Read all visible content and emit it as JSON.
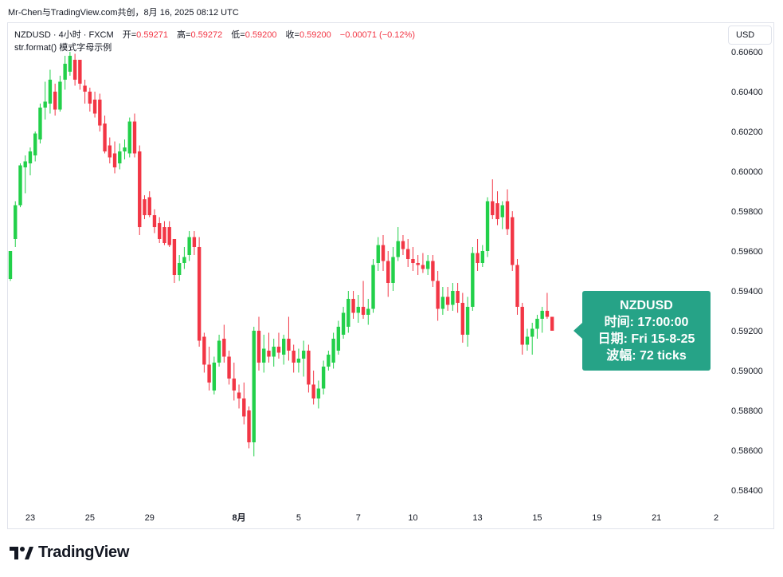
{
  "caption": {
    "text": "Mr-Chen与TradingView.com共创，8月 16, 2025 08:12 UTC"
  },
  "legend": {
    "symbol": "NZDUSD · 4小时 · FXCM",
    "open_label": "开=",
    "open": "0.59271",
    "high_label": "高=",
    "high": "0.59272",
    "low_label": "低=",
    "low": "0.59200",
    "close_label": "收=",
    "close": "0.59200",
    "change": "−0.00071 (−0.12%)"
  },
  "subtitle": "str.format() 模式字母示例",
  "currency_button": "USD",
  "footer": {
    "brand": "TradingView"
  },
  "callout": {
    "line1": "NZDUSD",
    "line2": "时间: 17:00:00",
    "line3": "日期: Fri 15-8-25",
    "line4": "波幅: 72 ticks"
  },
  "colors": {
    "up": "#22d04a",
    "down": "#f23645",
    "callout": "#26a387",
    "text": "#131722"
  },
  "chart_data": {
    "type": "candlestick",
    "symbol": "NZDUSD",
    "interval": "4小时",
    "y_ticks": [
      "0.60600",
      "0.60400",
      "0.60200",
      "0.60000",
      "0.59800",
      "0.59600",
      "0.59400",
      "0.59200",
      "0.59000",
      "0.58800",
      "0.58600",
      "0.58400"
    ],
    "y_range": [
      0.5836,
      0.6068
    ],
    "x_ticks": [
      {
        "label": "23",
        "index": 4
      },
      {
        "label": "25",
        "index": 16
      },
      {
        "label": "29",
        "index": 28
      },
      {
        "label": "8月",
        "index": 46
      },
      {
        "label": "5",
        "index": 58
      },
      {
        "label": "7",
        "index": 70
      },
      {
        "label": "10",
        "index": 81
      },
      {
        "label": "13",
        "index": 94
      },
      {
        "label": "15",
        "index": 106
      },
      {
        "label": "19",
        "index": 118
      },
      {
        "label": "21",
        "index": 130
      },
      {
        "label": "2",
        "index": 142
      }
    ],
    "candles": [
      {
        "o": 0.5946,
        "h": 0.596,
        "l": 0.5945,
        "c": 0.596
      },
      {
        "o": 0.5966,
        "h": 0.5985,
        "l": 0.5962,
        "c": 0.5983
      },
      {
        "o": 0.5983,
        "h": 0.6004,
        "l": 0.5982,
        "c": 0.6003
      },
      {
        "o": 0.6002,
        "h": 0.6008,
        "l": 0.5989,
        "c": 0.6005
      },
      {
        "o": 0.6004,
        "h": 0.6012,
        "l": 0.5998,
        "c": 0.601
      },
      {
        "o": 0.6008,
        "h": 0.602,
        "l": 0.6005,
        "c": 0.6019
      },
      {
        "o": 0.6016,
        "h": 0.6034,
        "l": 0.6014,
        "c": 0.6032
      },
      {
        "o": 0.6032,
        "h": 0.6045,
        "l": 0.6026,
        "c": 0.6035
      },
      {
        "o": 0.6034,
        "h": 0.6051,
        "l": 0.6029,
        "c": 0.6046
      },
      {
        "o": 0.604,
        "h": 0.6044,
        "l": 0.6028,
        "c": 0.6031
      },
      {
        "o": 0.6031,
        "h": 0.6048,
        "l": 0.603,
        "c": 0.6045
      },
      {
        "o": 0.6046,
        "h": 0.6058,
        "l": 0.6041,
        "c": 0.6054
      },
      {
        "o": 0.605,
        "h": 0.606,
        "l": 0.6048,
        "c": 0.6058
      },
      {
        "o": 0.6056,
        "h": 0.6059,
        "l": 0.6043,
        "c": 0.6046
      },
      {
        "o": 0.6056,
        "h": 0.6056,
        "l": 0.6041,
        "c": 0.6044
      },
      {
        "o": 0.6043,
        "h": 0.6046,
        "l": 0.6034,
        "c": 0.604
      },
      {
        "o": 0.604,
        "h": 0.6042,
        "l": 0.603,
        "c": 0.6034
      },
      {
        "o": 0.6036,
        "h": 0.604,
        "l": 0.6027,
        "c": 0.6029
      },
      {
        "o": 0.6036,
        "h": 0.6039,
        "l": 0.602,
        "c": 0.6023
      },
      {
        "o": 0.6024,
        "h": 0.6028,
        "l": 0.6009,
        "c": 0.601
      },
      {
        "o": 0.6013,
        "h": 0.6017,
        "l": 0.6004,
        "c": 0.6007
      },
      {
        "o": 0.6009,
        "h": 0.6015,
        "l": 0.5999,
        "c": 0.6002
      },
      {
        "o": 0.6004,
        "h": 0.6014,
        "l": 0.6001,
        "c": 0.601
      },
      {
        "o": 0.601,
        "h": 0.6016,
        "l": 0.6006,
        "c": 0.6012
      },
      {
        "o": 0.6009,
        "h": 0.6027,
        "l": 0.6007,
        "c": 0.6025
      },
      {
        "o": 0.6025,
        "h": 0.6029,
        "l": 0.6007,
        "c": 0.6009
      },
      {
        "o": 0.601,
        "h": 0.6013,
        "l": 0.5968,
        "c": 0.5972
      },
      {
        "o": 0.5986,
        "h": 0.5988,
        "l": 0.5976,
        "c": 0.5978
      },
      {
        "o": 0.5987,
        "h": 0.599,
        "l": 0.5977,
        "c": 0.5978
      },
      {
        "o": 0.5978,
        "h": 0.5981,
        "l": 0.5969,
        "c": 0.5972
      },
      {
        "o": 0.5974,
        "h": 0.5977,
        "l": 0.5964,
        "c": 0.5966
      },
      {
        "o": 0.5972,
        "h": 0.5975,
        "l": 0.5963,
        "c": 0.5964
      },
      {
        "o": 0.5972,
        "h": 0.5975,
        "l": 0.5962,
        "c": 0.5963
      },
      {
        "o": 0.5966,
        "h": 0.5966,
        "l": 0.5944,
        "c": 0.5948
      },
      {
        "o": 0.5948,
        "h": 0.5958,
        "l": 0.5945,
        "c": 0.5954
      },
      {
        "o": 0.5954,
        "h": 0.5962,
        "l": 0.5951,
        "c": 0.5957
      },
      {
        "o": 0.5958,
        "h": 0.597,
        "l": 0.5955,
        "c": 0.5967
      },
      {
        "o": 0.5967,
        "h": 0.597,
        "l": 0.5958,
        "c": 0.5962
      },
      {
        "o": 0.5962,
        "h": 0.5967,
        "l": 0.5912,
        "c": 0.5915
      },
      {
        "o": 0.5917,
        "h": 0.5919,
        "l": 0.5899,
        "c": 0.5903
      },
      {
        "o": 0.5903,
        "h": 0.5912,
        "l": 0.589,
        "c": 0.5894
      },
      {
        "o": 0.589,
        "h": 0.5907,
        "l": 0.5888,
        "c": 0.5904
      },
      {
        "o": 0.5904,
        "h": 0.5918,
        "l": 0.5902,
        "c": 0.5915
      },
      {
        "o": 0.5916,
        "h": 0.5923,
        "l": 0.5904,
        "c": 0.5907
      },
      {
        "o": 0.5907,
        "h": 0.591,
        "l": 0.5893,
        "c": 0.5896
      },
      {
        "o": 0.5896,
        "h": 0.5904,
        "l": 0.5885,
        "c": 0.589
      },
      {
        "o": 0.5889,
        "h": 0.5893,
        "l": 0.5881,
        "c": 0.5886
      },
      {
        "o": 0.5886,
        "h": 0.5894,
        "l": 0.5873,
        "c": 0.5877
      },
      {
        "o": 0.588,
        "h": 0.5882,
        "l": 0.5861,
        "c": 0.5864
      },
      {
        "o": 0.5864,
        "h": 0.5922,
        "l": 0.5857,
        "c": 0.592
      },
      {
        "o": 0.592,
        "h": 0.5927,
        "l": 0.59,
        "c": 0.5904
      },
      {
        "o": 0.5904,
        "h": 0.5918,
        "l": 0.5899,
        "c": 0.5911
      },
      {
        "o": 0.591,
        "h": 0.5919,
        "l": 0.5904,
        "c": 0.5907
      },
      {
        "o": 0.5907,
        "h": 0.5916,
        "l": 0.5902,
        "c": 0.5912
      },
      {
        "o": 0.5912,
        "h": 0.5919,
        "l": 0.5906,
        "c": 0.5909
      },
      {
        "o": 0.5908,
        "h": 0.5918,
        "l": 0.5903,
        "c": 0.5916
      },
      {
        "o": 0.5916,
        "h": 0.5927,
        "l": 0.5905,
        "c": 0.591
      },
      {
        "o": 0.591,
        "h": 0.5913,
        "l": 0.5899,
        "c": 0.5904
      },
      {
        "o": 0.5904,
        "h": 0.5911,
        "l": 0.5899,
        "c": 0.5906
      },
      {
        "o": 0.5906,
        "h": 0.5915,
        "l": 0.5897,
        "c": 0.591
      },
      {
        "o": 0.591,
        "h": 0.5913,
        "l": 0.5889,
        "c": 0.5893
      },
      {
        "o": 0.5893,
        "h": 0.59,
        "l": 0.5883,
        "c": 0.5886
      },
      {
        "o": 0.5886,
        "h": 0.5895,
        "l": 0.5881,
        "c": 0.5891
      },
      {
        "o": 0.5891,
        "h": 0.5905,
        "l": 0.5888,
        "c": 0.5902
      },
      {
        "o": 0.5902,
        "h": 0.591,
        "l": 0.59,
        "c": 0.5908
      },
      {
        "o": 0.5904,
        "h": 0.5919,
        "l": 0.5901,
        "c": 0.5916
      },
      {
        "o": 0.591,
        "h": 0.5925,
        "l": 0.5908,
        "c": 0.5922
      },
      {
        "o": 0.5918,
        "h": 0.5932,
        "l": 0.5916,
        "c": 0.5929
      },
      {
        "o": 0.5922,
        "h": 0.594,
        "l": 0.5919,
        "c": 0.5936
      },
      {
        "o": 0.5936,
        "h": 0.594,
        "l": 0.5926,
        "c": 0.5929
      },
      {
        "o": 0.5929,
        "h": 0.5938,
        "l": 0.5924,
        "c": 0.5932
      },
      {
        "o": 0.5932,
        "h": 0.5945,
        "l": 0.5926,
        "c": 0.5928
      },
      {
        "o": 0.5928,
        "h": 0.5936,
        "l": 0.5923,
        "c": 0.5931
      },
      {
        "o": 0.5931,
        "h": 0.5956,
        "l": 0.5929,
        "c": 0.5953
      },
      {
        "o": 0.5954,
        "h": 0.5967,
        "l": 0.595,
        "c": 0.5963
      },
      {
        "o": 0.5963,
        "h": 0.5968,
        "l": 0.595,
        "c": 0.5955
      },
      {
        "o": 0.5955,
        "h": 0.596,
        "l": 0.5937,
        "c": 0.5944
      },
      {
        "o": 0.5944,
        "h": 0.5962,
        "l": 0.594,
        "c": 0.5957
      },
      {
        "o": 0.5957,
        "h": 0.5972,
        "l": 0.5955,
        "c": 0.5965
      },
      {
        "o": 0.5965,
        "h": 0.5968,
        "l": 0.5958,
        "c": 0.5961
      },
      {
        "o": 0.5961,
        "h": 0.5966,
        "l": 0.5952,
        "c": 0.5956
      },
      {
        "o": 0.5956,
        "h": 0.5962,
        "l": 0.595,
        "c": 0.5954
      },
      {
        "o": 0.5954,
        "h": 0.5958,
        "l": 0.5948,
        "c": 0.5953
      },
      {
        "o": 0.5953,
        "h": 0.5959,
        "l": 0.5949,
        "c": 0.5951
      },
      {
        "o": 0.5951,
        "h": 0.5958,
        "l": 0.5948,
        "c": 0.5955
      },
      {
        "o": 0.5955,
        "h": 0.5958,
        "l": 0.5942,
        "c": 0.5945
      },
      {
        "o": 0.5945,
        "h": 0.595,
        "l": 0.5925,
        "c": 0.5931
      },
      {
        "o": 0.5931,
        "h": 0.5942,
        "l": 0.5928,
        "c": 0.5937
      },
      {
        "o": 0.5937,
        "h": 0.5942,
        "l": 0.593,
        "c": 0.5933
      },
      {
        "o": 0.5933,
        "h": 0.5944,
        "l": 0.593,
        "c": 0.594
      },
      {
        "o": 0.594,
        "h": 0.5944,
        "l": 0.5929,
        "c": 0.5934
      },
      {
        "o": 0.5934,
        "h": 0.5939,
        "l": 0.5914,
        "c": 0.5918
      },
      {
        "o": 0.5918,
        "h": 0.5937,
        "l": 0.5912,
        "c": 0.5932
      },
      {
        "o": 0.5932,
        "h": 0.5962,
        "l": 0.593,
        "c": 0.5959
      },
      {
        "o": 0.5959,
        "h": 0.5966,
        "l": 0.595,
        "c": 0.5954
      },
      {
        "o": 0.5954,
        "h": 0.5963,
        "l": 0.5952,
        "c": 0.596
      },
      {
        "o": 0.596,
        "h": 0.5987,
        "l": 0.5957,
        "c": 0.5985
      },
      {
        "o": 0.5985,
        "h": 0.5996,
        "l": 0.5976,
        "c": 0.5978
      },
      {
        "o": 0.5984,
        "h": 0.599,
        "l": 0.5973,
        "c": 0.5976
      },
      {
        "o": 0.5977,
        "h": 0.5985,
        "l": 0.5971,
        "c": 0.5983
      },
      {
        "o": 0.5985,
        "h": 0.5991,
        "l": 0.5968,
        "c": 0.5971
      },
      {
        "o": 0.5977,
        "h": 0.598,
        "l": 0.595,
        "c": 0.5953
      },
      {
        "o": 0.5953,
        "h": 0.5956,
        "l": 0.5928,
        "c": 0.5932
      },
      {
        "o": 0.5932,
        "h": 0.5934,
        "l": 0.5908,
        "c": 0.5913
      },
      {
        "o": 0.5913,
        "h": 0.5921,
        "l": 0.591,
        "c": 0.5917
      },
      {
        "o": 0.5917,
        "h": 0.5924,
        "l": 0.5908,
        "c": 0.5921
      },
      {
        "o": 0.5921,
        "h": 0.5928,
        "l": 0.5916,
        "c": 0.5926
      },
      {
        "o": 0.5926,
        "h": 0.5932,
        "l": 0.5919,
        "c": 0.593
      },
      {
        "o": 0.593,
        "h": 0.5939,
        "l": 0.5926,
        "c": 0.5927
      },
      {
        "o": 0.5927,
        "h": 0.5927,
        "l": 0.592,
        "c": 0.592
      }
    ]
  }
}
